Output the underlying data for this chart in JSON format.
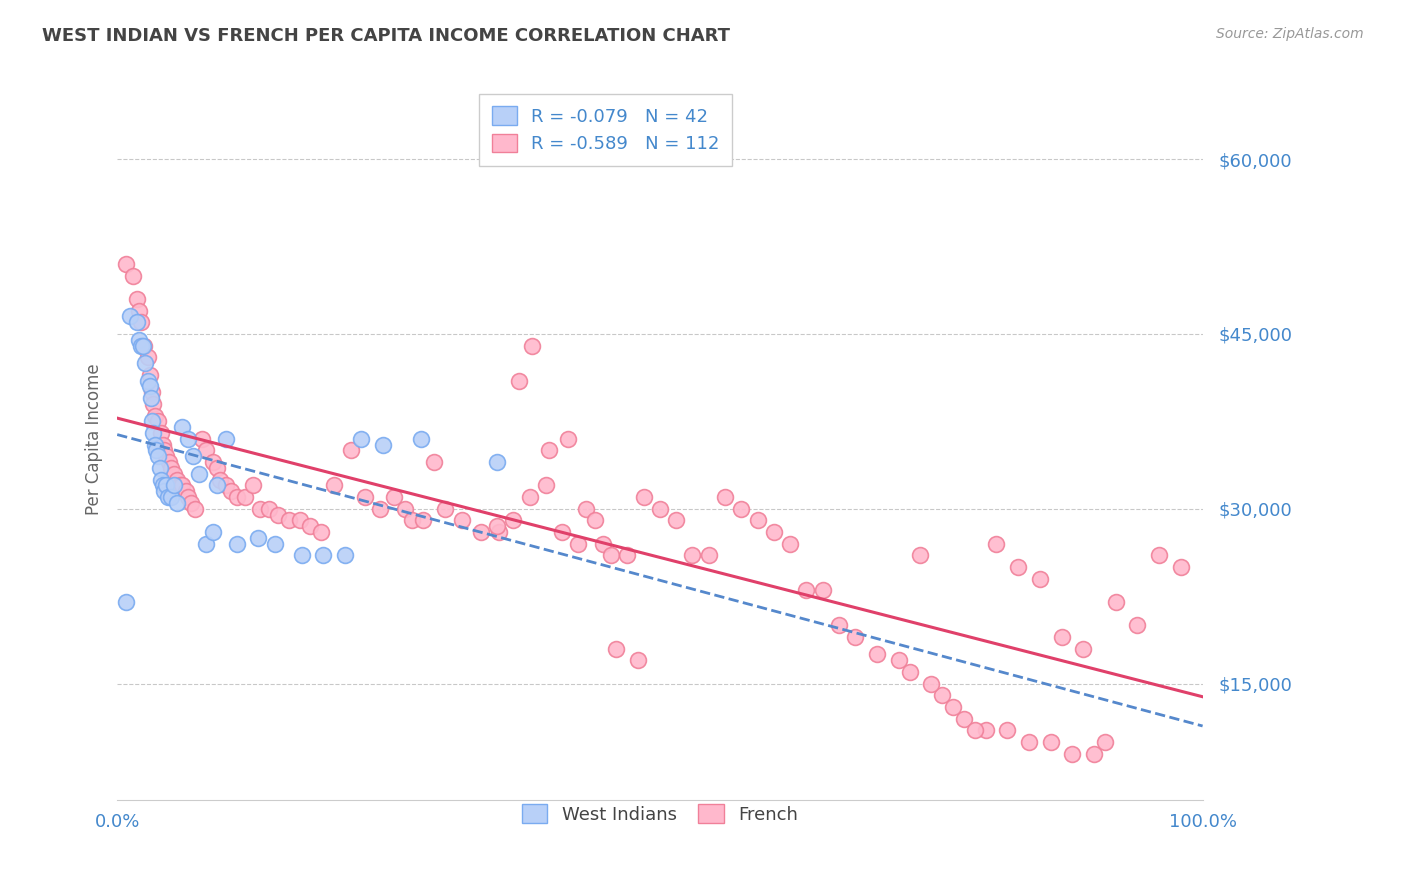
{
  "title": "WEST INDIAN VS FRENCH PER CAPITA INCOME CORRELATION CHART",
  "source": "Source: ZipAtlas.com",
  "ylabel": "Per Capita Income",
  "xlim": [
    0.0,
    1.0
  ],
  "ylim": [
    5000,
    67000
  ],
  "yticks": [
    15000,
    30000,
    45000,
    60000
  ],
  "ytick_labels": [
    "$15,000",
    "$30,000",
    "$45,000",
    "$60,000"
  ],
  "blue_R": -0.079,
  "blue_N": 42,
  "pink_R": -0.589,
  "pink_N": 112,
  "legend_labels": [
    "West Indians",
    "French"
  ],
  "blue_dot_face": "#b8d0f8",
  "blue_dot_edge": "#7aabf0",
  "pink_dot_face": "#ffb8cc",
  "pink_dot_edge": "#f08099",
  "trend_blue_color": "#5588cc",
  "trend_pink_color": "#e0406a",
  "grid_color": "#bbbbbb",
  "title_color": "#444444",
  "axis_label_color": "#666666",
  "tick_color": "#4488cc",
  "background_color": "#ffffff",
  "west_indian_x": [
    0.008,
    0.012,
    0.018,
    0.02,
    0.022,
    0.024,
    0.026,
    0.028,
    0.03,
    0.031,
    0.032,
    0.033,
    0.035,
    0.036,
    0.038,
    0.039,
    0.04,
    0.042,
    0.043,
    0.045,
    0.047,
    0.05,
    0.052,
    0.055,
    0.06,
    0.065,
    0.07,
    0.075,
    0.082,
    0.088,
    0.092,
    0.1,
    0.11,
    0.13,
    0.145,
    0.17,
    0.19,
    0.21,
    0.225,
    0.245,
    0.28,
    0.35
  ],
  "west_indian_y": [
    22000,
    46500,
    46000,
    44500,
    44000,
    44000,
    42500,
    41000,
    40500,
    39500,
    37500,
    36500,
    35500,
    35000,
    34500,
    33500,
    32500,
    32000,
    31500,
    32000,
    31000,
    31000,
    32000,
    30500,
    37000,
    36000,
    34500,
    33000,
    27000,
    28000,
    32000,
    36000,
    27000,
    27500,
    27000,
    26000,
    26000,
    26000,
    36000,
    35500,
    36000,
    34000
  ],
  "french_x": [
    0.008,
    0.015,
    0.018,
    0.02,
    0.022,
    0.025,
    0.028,
    0.03,
    0.032,
    0.033,
    0.035,
    0.038,
    0.04,
    0.042,
    0.043,
    0.045,
    0.048,
    0.05,
    0.052,
    0.055,
    0.058,
    0.06,
    0.063,
    0.065,
    0.068,
    0.072,
    0.078,
    0.082,
    0.088,
    0.092,
    0.095,
    0.1,
    0.105,
    0.11,
    0.118,
    0.125,
    0.132,
    0.14,
    0.148,
    0.158,
    0.168,
    0.178,
    0.188,
    0.2,
    0.215,
    0.228,
    0.242,
    0.255,
    0.265,
    0.272,
    0.282,
    0.292,
    0.302,
    0.318,
    0.335,
    0.352,
    0.37,
    0.382,
    0.398,
    0.415,
    0.432,
    0.448,
    0.35,
    0.365,
    0.38,
    0.395,
    0.41,
    0.425,
    0.44,
    0.455,
    0.47,
    0.485,
    0.5,
    0.515,
    0.53,
    0.545,
    0.56,
    0.575,
    0.59,
    0.605,
    0.62,
    0.635,
    0.65,
    0.665,
    0.68,
    0.7,
    0.72,
    0.74,
    0.76,
    0.78,
    0.8,
    0.82,
    0.84,
    0.86,
    0.88,
    0.9,
    0.92,
    0.94,
    0.96,
    0.98,
    0.46,
    0.48,
    0.73,
    0.75,
    0.77,
    0.79,
    0.81,
    0.83,
    0.85,
    0.87,
    0.89,
    0.91
  ],
  "french_y": [
    51000,
    50000,
    48000,
    47000,
    46000,
    44000,
    43000,
    41500,
    40000,
    39000,
    38000,
    37500,
    36500,
    35500,
    35000,
    34500,
    34000,
    33500,
    33000,
    32500,
    32000,
    32000,
    31500,
    31000,
    30500,
    30000,
    36000,
    35000,
    34000,
    33500,
    32500,
    32000,
    31500,
    31000,
    31000,
    32000,
    30000,
    30000,
    29500,
    29000,
    29000,
    28500,
    28000,
    32000,
    35000,
    31000,
    30000,
    31000,
    30000,
    29000,
    29000,
    34000,
    30000,
    29000,
    28000,
    28000,
    41000,
    44000,
    35000,
    36000,
    30000,
    27000,
    28500,
    29000,
    31000,
    32000,
    28000,
    27000,
    29000,
    26000,
    26000,
    31000,
    30000,
    29000,
    26000,
    26000,
    31000,
    30000,
    29000,
    28000,
    27000,
    23000,
    23000,
    20000,
    19000,
    17500,
    17000,
    26000,
    14000,
    12000,
    11000,
    11000,
    10000,
    10000,
    9000,
    9000,
    22000,
    20000,
    26000,
    25000,
    18000,
    17000,
    16000,
    15000,
    13000,
    11000,
    27000,
    25000,
    24000,
    19000,
    18000,
    10000
  ]
}
